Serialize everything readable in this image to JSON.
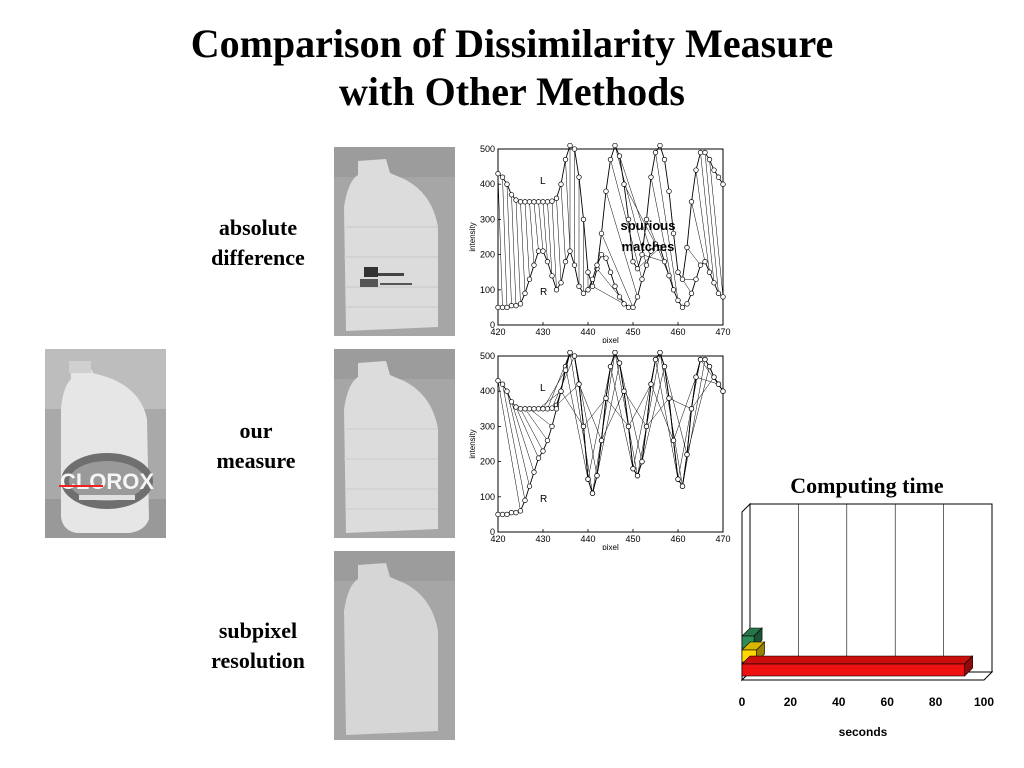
{
  "slide": {
    "title_line1": "Comparison of Dissimilarity Measure",
    "title_line2": "with Other Methods",
    "photo_label": "CLOROX",
    "rows": [
      {
        "line1": "absolute",
        "line2": "difference"
      },
      {
        "line1": "our",
        "line2": "measure"
      },
      {
        "line1": "subpixel",
        "line2": "resolution"
      }
    ],
    "annotation": {
      "line1": "spurious",
      "line2": "matches"
    }
  },
  "chart_data": [
    {
      "type": "line",
      "xlabel": "pixel",
      "ylabel": "intensity",
      "xlim": [
        420,
        470
      ],
      "ylim": [
        0,
        500
      ],
      "xticks": [
        420,
        430,
        440,
        450,
        460,
        470
      ],
      "yticks": [
        0,
        100,
        200,
        300,
        400,
        500
      ],
      "curve_labels": [
        "L",
        "R"
      ],
      "series": [
        {
          "name": "L",
          "x": [
            420,
            421,
            422,
            423,
            424,
            425,
            426,
            427,
            428,
            429,
            430,
            431,
            432,
            433,
            434,
            435,
            436,
            437,
            438,
            439,
            440,
            441,
            442,
            443,
            444,
            445,
            446,
            447,
            448,
            449,
            450,
            451,
            452,
            453,
            454,
            455,
            456,
            457,
            458,
            459,
            460,
            461,
            462,
            463,
            464,
            465,
            466,
            467,
            468,
            469,
            470
          ],
          "values": [
            430,
            420,
            400,
            370,
            355,
            350,
            350,
            350,
            350,
            350,
            350,
            350,
            352,
            360,
            400,
            470,
            510,
            500,
            420,
            300,
            150,
            110,
            160,
            260,
            380,
            470,
            510,
            480,
            400,
            300,
            180,
            160,
            200,
            300,
            420,
            490,
            510,
            470,
            380,
            260,
            150,
            130,
            220,
            350,
            440,
            490,
            490,
            470,
            440,
            420,
            400
          ]
        },
        {
          "name": "R",
          "x": [
            420,
            421,
            422,
            423,
            424,
            425,
            426,
            427,
            428,
            429,
            430,
            431,
            432,
            433,
            434,
            435,
            436,
            437,
            438,
            439,
            440,
            441,
            442,
            443,
            444,
            445,
            446,
            447,
            448,
            449,
            450,
            451,
            452,
            453,
            454,
            455,
            456,
            457,
            458,
            459,
            460,
            461,
            462,
            463,
            464,
            465,
            466,
            467,
            468,
            469,
            470
          ],
          "values": [
            50,
            50,
            50,
            55,
            55,
            60,
            90,
            130,
            170,
            210,
            210,
            180,
            140,
            100,
            120,
            180,
            210,
            170,
            110,
            90,
            100,
            130,
            170,
            200,
            190,
            150,
            110,
            80,
            60,
            50,
            50,
            80,
            130,
            170,
            210,
            230,
            220,
            180,
            140,
            100,
            70,
            50,
            60,
            90,
            130,
            170,
            180,
            150,
            120,
            90,
            80
          ]
        }
      ],
      "matches": [
        [
          420,
          421
        ],
        [
          421,
          422
        ],
        [
          422,
          423
        ],
        [
          423,
          424
        ],
        [
          424,
          425
        ],
        [
          425,
          426
        ],
        [
          426,
          427
        ],
        [
          427,
          428
        ],
        [
          428,
          429
        ],
        [
          429,
          430
        ],
        [
          430,
          431
        ],
        [
          431,
          432
        ],
        [
          432,
          433
        ],
        [
          433,
          434
        ],
        [
          434,
          435
        ],
        [
          435,
          436
        ],
        [
          436,
          436
        ],
        [
          437,
          437
        ],
        [
          438,
          438
        ],
        [
          439,
          439
        ],
        [
          440,
          440
        ],
        [
          441,
          448
        ],
        [
          442,
          449
        ],
        [
          443,
          450
        ],
        [
          444,
          451
        ],
        [
          445,
          452
        ],
        [
          446,
          453
        ],
        [
          447,
          454
        ],
        [
          448,
          455
        ],
        [
          451,
          456
        ],
        [
          452,
          457
        ],
        [
          453,
          458
        ],
        [
          454,
          459
        ],
        [
          455,
          460
        ],
        [
          460,
          463
        ],
        [
          461,
          464
        ],
        [
          462,
          465
        ],
        [
          463,
          466
        ],
        [
          464,
          467
        ],
        [
          465,
          468
        ],
        [
          466,
          469
        ],
        [
          467,
          470
        ]
      ]
    },
    {
      "type": "line",
      "xlabel": "pixel",
      "ylabel": "intensity",
      "xlim": [
        420,
        470
      ],
      "ylim": [
        0,
        500
      ],
      "xticks": [
        420,
        430,
        440,
        450,
        460,
        470
      ],
      "yticks": [
        0,
        100,
        200,
        300,
        400,
        500
      ],
      "curve_labels": [
        "L",
        "R"
      ],
      "series": [
        {
          "name": "L",
          "x": [
            420,
            421,
            422,
            423,
            424,
            425,
            426,
            427,
            428,
            429,
            430,
            431,
            432,
            433,
            434,
            435,
            436,
            437,
            438,
            439,
            440,
            441,
            442,
            443,
            444,
            445,
            446,
            447,
            448,
            449,
            450,
            451,
            452,
            453,
            454,
            455,
            456,
            457,
            458,
            459,
            460,
            461,
            462,
            463,
            464,
            465,
            466,
            467,
            468,
            469,
            470
          ],
          "values": [
            430,
            420,
            400,
            370,
            355,
            350,
            350,
            350,
            350,
            350,
            350,
            350,
            352,
            360,
            400,
            470,
            510,
            500,
            420,
            300,
            150,
            110,
            160,
            260,
            380,
            470,
            510,
            480,
            400,
            300,
            180,
            160,
            200,
            300,
            420,
            490,
            510,
            470,
            380,
            260,
            150,
            130,
            220,
            350,
            440,
            490,
            490,
            470,
            440,
            420,
            400
          ]
        },
        {
          "name": "R",
          "x": [
            420,
            421,
            422,
            423,
            424,
            425,
            426,
            427,
            428,
            429,
            430,
            431,
            432,
            433,
            434,
            435,
            436,
            437,
            438,
            439,
            440,
            441,
            442,
            443,
            444,
            445,
            446,
            447,
            448,
            449,
            450,
            451,
            452,
            453,
            454,
            455,
            456,
            457,
            458,
            459,
            460,
            461,
            462,
            463,
            464,
            465,
            466,
            467,
            468,
            469,
            470
          ],
          "values": [
            50,
            50,
            50,
            55,
            55,
            60,
            90,
            130,
            170,
            210,
            230,
            260,
            300,
            350,
            400,
            460,
            510,
            500,
            420,
            300,
            150,
            110,
            160,
            260,
            380,
            470,
            510,
            480,
            400,
            300,
            180,
            160,
            200,
            300,
            420,
            490,
            510,
            470,
            380,
            260,
            150,
            130,
            220,
            350,
            440,
            490,
            490,
            470,
            440,
            420,
            400
          ]
        }
      ],
      "matches": [
        [
          420,
          425
        ],
        [
          421,
          426
        ],
        [
          422,
          427
        ],
        [
          423,
          428
        ],
        [
          424,
          429
        ],
        [
          425,
          430
        ],
        [
          426,
          431
        ],
        [
          427,
          432
        ],
        [
          428,
          433
        ],
        [
          429,
          434
        ],
        [
          430,
          435
        ],
        [
          431,
          436
        ],
        [
          432,
          437
        ],
        [
          433,
          438
        ],
        [
          434,
          439
        ],
        [
          435,
          440
        ],
        [
          436,
          441
        ],
        [
          437,
          442
        ],
        [
          438,
          443
        ],
        [
          439,
          444
        ],
        [
          440,
          445
        ],
        [
          441,
          446
        ],
        [
          442,
          447
        ],
        [
          443,
          448
        ],
        [
          444,
          449
        ],
        [
          445,
          450
        ],
        [
          446,
          451
        ],
        [
          447,
          452
        ],
        [
          448,
          453
        ],
        [
          449,
          454
        ],
        [
          450,
          455
        ],
        [
          451,
          456
        ],
        [
          452,
          457
        ],
        [
          453,
          458
        ],
        [
          454,
          459
        ],
        [
          455,
          460
        ],
        [
          456,
          461
        ],
        [
          457,
          462
        ],
        [
          458,
          463
        ],
        [
          459,
          464
        ],
        [
          460,
          465
        ],
        [
          461,
          466
        ],
        [
          462,
          467
        ],
        [
          463,
          468
        ],
        [
          464,
          469
        ],
        [
          465,
          470
        ]
      ]
    },
    {
      "type": "bar",
      "orientation": "horizontal",
      "title": "Computing time",
      "xlabel": "seconds",
      "xlim": [
        0,
        100
      ],
      "xticks": [
        0,
        20,
        40,
        60,
        80,
        100
      ],
      "grid": true,
      "bars": [
        {
          "value": 5,
          "color": "#2e8b57"
        },
        {
          "value": 6,
          "color": "#ffd700"
        },
        {
          "value": 92,
          "color": "#ee1111"
        }
      ]
    }
  ]
}
